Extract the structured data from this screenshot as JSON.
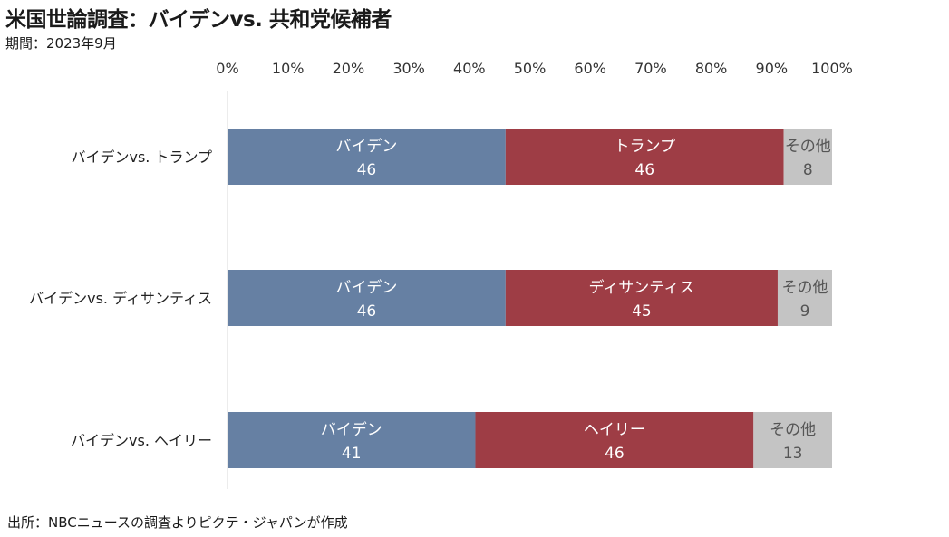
{
  "header": {
    "title": "米国世論調査：バイデンvs. 共和党候補者",
    "subtitle": "期間：2023年9月"
  },
  "footer": {
    "source": "出所：NBCニュースの調査よりピクテ・ジャパンが作成"
  },
  "colors": {
    "biden": "#6680a3",
    "republican": "#9e3d45",
    "other": "#c4c4c4",
    "axis_line": "#d9d9d9"
  },
  "chart_data": {
    "type": "bar",
    "orientation": "horizontal",
    "stacked": true,
    "xlim": [
      0,
      100
    ],
    "x_ticks": [
      "0%",
      "10%",
      "20%",
      "30%",
      "40%",
      "50%",
      "60%",
      "70%",
      "80%",
      "90%",
      "100%"
    ],
    "x_axis_position": "top",
    "grid": false,
    "categories": [
      "バイデンvs. トランプ",
      "バイデンvs. ディサンティス",
      "バイデンvs. ヘイリー"
    ],
    "segments": [
      [
        {
          "label": "バイデン",
          "value": 46,
          "color_key": "biden"
        },
        {
          "label": "トランプ",
          "value": 46,
          "color_key": "republican"
        },
        {
          "label": "その他",
          "value": 8,
          "color_key": "other"
        }
      ],
      [
        {
          "label": "バイデン",
          "value": 46,
          "color_key": "biden"
        },
        {
          "label": "ディサンティス",
          "value": 45,
          "color_key": "republican"
        },
        {
          "label": "その他",
          "value": 9,
          "color_key": "other"
        }
      ],
      [
        {
          "label": "バイデン",
          "value": 41,
          "color_key": "biden"
        },
        {
          "label": "ヘイリー",
          "value": 46,
          "color_key": "republican"
        },
        {
          "label": "その他",
          "value": 13,
          "color_key": "other"
        }
      ]
    ]
  }
}
